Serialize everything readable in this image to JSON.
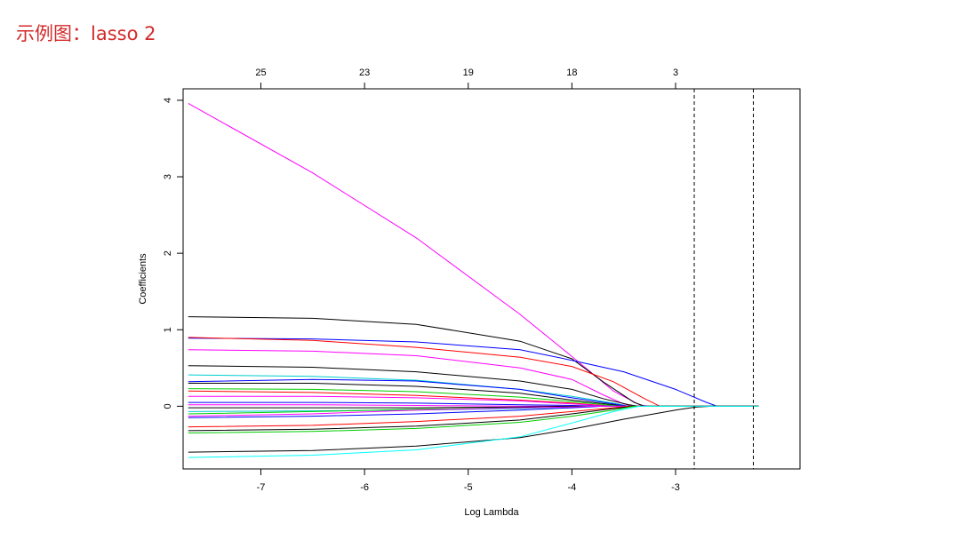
{
  "slide": {
    "title": "示例图：lasso 2"
  },
  "chart_data": {
    "type": "line",
    "title": "",
    "xlabel": "Log Lambda",
    "ylabel": "Coefficients",
    "xlim": [
      -7.75,
      -1.8
    ],
    "ylim": [
      -0.82,
      4.15
    ],
    "x_ticks": [
      -7,
      -6,
      -5,
      -4,
      -3
    ],
    "x_tick_labels": [
      "-7",
      "-6",
      "-5",
      "-4",
      "-3"
    ],
    "y_ticks": [
      0,
      1,
      2,
      3,
      4
    ],
    "y_tick_labels": [
      "0",
      "1",
      "2",
      "3",
      "4"
    ],
    "top_axis": {
      "label": "",
      "ticks": [
        -7,
        -6,
        -5,
        -4,
        -3
      ],
      "tick_labels": [
        "25",
        "23",
        "19",
        "18",
        "3"
      ]
    },
    "vlines": [
      -2.82,
      -2.25
    ],
    "grid": false,
    "legend": "none",
    "series": [
      {
        "color": "#ff00ff",
        "points": [
          [
            -7.7,
            3.96
          ],
          [
            -6.5,
            3.05
          ],
          [
            -5.5,
            2.2
          ],
          [
            -4.5,
            1.2
          ],
          [
            -4.0,
            0.65
          ],
          [
            -3.6,
            0.2
          ],
          [
            -3.35,
            0.02
          ],
          [
            -3.25,
            0
          ]
        ]
      },
      {
        "color": "#000000",
        "points": [
          [
            -7.7,
            1.17
          ],
          [
            -6.5,
            1.15
          ],
          [
            -5.5,
            1.07
          ],
          [
            -4.5,
            0.85
          ],
          [
            -4.0,
            0.62
          ],
          [
            -3.7,
            0.32
          ],
          [
            -3.4,
            0.05
          ],
          [
            -3.3,
            0
          ]
        ]
      },
      {
        "color": "#0000ff",
        "points": [
          [
            -7.7,
            0.89
          ],
          [
            -6.5,
            0.88
          ],
          [
            -5.5,
            0.84
          ],
          [
            -4.5,
            0.74
          ],
          [
            -4.0,
            0.6
          ],
          [
            -3.5,
            0.45
          ],
          [
            -3.0,
            0.22
          ],
          [
            -2.7,
            0.05
          ],
          [
            -2.6,
            0
          ]
        ]
      },
      {
        "color": "#ff0000",
        "points": [
          [
            -7.7,
            0.9
          ],
          [
            -6.5,
            0.86
          ],
          [
            -5.5,
            0.77
          ],
          [
            -4.5,
            0.64
          ],
          [
            -4.0,
            0.52
          ],
          [
            -3.6,
            0.32
          ],
          [
            -3.3,
            0.1
          ],
          [
            -3.15,
            0
          ]
        ]
      },
      {
        "color": "#ff00ff",
        "points": [
          [
            -7.7,
            0.74
          ],
          [
            -6.5,
            0.72
          ],
          [
            -5.5,
            0.66
          ],
          [
            -4.5,
            0.5
          ],
          [
            -4.0,
            0.35
          ],
          [
            -3.7,
            0.15
          ],
          [
            -3.5,
            0.03
          ],
          [
            -3.4,
            0
          ]
        ]
      },
      {
        "color": "#000000",
        "points": [
          [
            -7.7,
            0.53
          ],
          [
            -6.5,
            0.51
          ],
          [
            -5.5,
            0.45
          ],
          [
            -4.5,
            0.33
          ],
          [
            -4.0,
            0.22
          ],
          [
            -3.7,
            0.1
          ],
          [
            -3.45,
            0.02
          ],
          [
            -3.35,
            0
          ]
        ]
      },
      {
        "color": "#00cdcd",
        "points": [
          [
            -7.7,
            0.41
          ],
          [
            -6.5,
            0.39
          ],
          [
            -5.5,
            0.34
          ],
          [
            -4.5,
            0.22
          ],
          [
            -4.0,
            0.13
          ],
          [
            -3.6,
            0.04
          ],
          [
            -3.45,
            0
          ]
        ]
      },
      {
        "color": "#0000ff",
        "points": [
          [
            -7.7,
            0.32
          ],
          [
            -6.5,
            0.35
          ],
          [
            -5.5,
            0.33
          ],
          [
            -4.5,
            0.22
          ],
          [
            -4.0,
            0.11
          ],
          [
            -3.6,
            0.03
          ],
          [
            -3.45,
            0
          ]
        ]
      },
      {
        "color": "#000000",
        "points": [
          [
            -7.7,
            0.3
          ],
          [
            -6.5,
            0.3
          ],
          [
            -5.5,
            0.26
          ],
          [
            -4.5,
            0.17
          ],
          [
            -4.0,
            0.08
          ],
          [
            -3.6,
            0.02
          ],
          [
            -3.5,
            0
          ]
        ]
      },
      {
        "color": "#00cd00",
        "points": [
          [
            -7.7,
            0.23
          ],
          [
            -6.5,
            0.22
          ],
          [
            -5.5,
            0.19
          ],
          [
            -4.5,
            0.12
          ],
          [
            -4.0,
            0.06
          ],
          [
            -3.6,
            0.01
          ],
          [
            -3.5,
            0
          ]
        ]
      },
      {
        "color": "#ff0000",
        "points": [
          [
            -7.7,
            0.2
          ],
          [
            -6.5,
            0.18
          ],
          [
            -5.5,
            0.14
          ],
          [
            -4.5,
            0.08
          ],
          [
            -4.0,
            0.04
          ],
          [
            -3.6,
            0
          ]
        ]
      },
      {
        "color": "#ff00ff",
        "points": [
          [
            -7.7,
            0.13
          ],
          [
            -6.5,
            0.13
          ],
          [
            -5.5,
            0.11
          ],
          [
            -4.5,
            0.07
          ],
          [
            -4.0,
            0.03
          ],
          [
            -3.6,
            0
          ]
        ]
      },
      {
        "color": "#0000ff",
        "points": [
          [
            -7.7,
            0.05
          ],
          [
            -6.5,
            0.05
          ],
          [
            -5.5,
            0.04
          ],
          [
            -4.5,
            0.02
          ],
          [
            -4.0,
            0.01
          ],
          [
            -3.7,
            0
          ]
        ]
      },
      {
        "color": "#ff00ff",
        "points": [
          [
            -7.7,
            0.02
          ],
          [
            -6.5,
            0.02
          ],
          [
            -5.5,
            0.01
          ],
          [
            -4.5,
            0.0
          ],
          [
            -4.0,
            0
          ]
        ]
      },
      {
        "color": "#000000",
        "points": [
          [
            -7.7,
            -0.02
          ],
          [
            -6.5,
            -0.02
          ],
          [
            -5.5,
            -0.02
          ],
          [
            -4.5,
            -0.01
          ],
          [
            -4.0,
            0
          ]
        ]
      },
      {
        "color": "#00cdcd",
        "points": [
          [
            -7.7,
            -0.07
          ],
          [
            -6.5,
            -0.06
          ],
          [
            -5.5,
            -0.05
          ],
          [
            -4.5,
            -0.03
          ],
          [
            -4.0,
            -0.01
          ],
          [
            -3.7,
            0
          ]
        ]
      },
      {
        "color": "#00cd00",
        "points": [
          [
            -7.7,
            -0.1
          ],
          [
            -6.5,
            -0.07
          ],
          [
            -5.5,
            -0.04
          ],
          [
            -4.5,
            -0.02
          ],
          [
            -4.0,
            -0.01
          ],
          [
            -3.8,
            0
          ]
        ]
      },
      {
        "color": "#0000ff",
        "points": [
          [
            -7.7,
            -0.15
          ],
          [
            -6.5,
            -0.13
          ],
          [
            -5.5,
            -0.1
          ],
          [
            -4.5,
            -0.05
          ],
          [
            -4.0,
            -0.02
          ],
          [
            -3.7,
            0
          ]
        ]
      },
      {
        "color": "#ff00ff",
        "points": [
          [
            -7.7,
            -0.13
          ],
          [
            -6.5,
            -0.1
          ],
          [
            -5.5,
            -0.05
          ],
          [
            -4.5,
            -0.02
          ],
          [
            -4.0,
            -0.01
          ],
          [
            -3.8,
            0
          ]
        ]
      },
      {
        "color": "#ff0000",
        "points": [
          [
            -7.7,
            -0.27
          ],
          [
            -6.5,
            -0.25
          ],
          [
            -5.5,
            -0.2
          ],
          [
            -4.5,
            -0.13
          ],
          [
            -4.0,
            -0.07
          ],
          [
            -3.6,
            -0.02
          ],
          [
            -3.45,
            0
          ]
        ]
      },
      {
        "color": "#000000",
        "points": [
          [
            -7.7,
            -0.32
          ],
          [
            -6.5,
            -0.3
          ],
          [
            -5.5,
            -0.26
          ],
          [
            -4.5,
            -0.18
          ],
          [
            -4.0,
            -0.1
          ],
          [
            -3.6,
            -0.03
          ],
          [
            -3.4,
            0
          ]
        ]
      },
      {
        "color": "#00cd00",
        "points": [
          [
            -7.7,
            -0.35
          ],
          [
            -6.5,
            -0.33
          ],
          [
            -5.5,
            -0.29
          ],
          [
            -4.5,
            -0.21
          ],
          [
            -4.0,
            -0.13
          ],
          [
            -3.6,
            -0.05
          ],
          [
            -3.4,
            0
          ]
        ]
      },
      {
        "color": "#000000",
        "points": [
          [
            -7.7,
            -0.6
          ],
          [
            -6.5,
            -0.58
          ],
          [
            -5.5,
            -0.52
          ],
          [
            -4.5,
            -0.41
          ],
          [
            -4.0,
            -0.3
          ],
          [
            -3.5,
            -0.17
          ],
          [
            -3.0,
            -0.05
          ],
          [
            -2.8,
            -0.01
          ],
          [
            -2.65,
            0
          ]
        ]
      },
      {
        "color": "#00ffff",
        "points": [
          [
            -7.7,
            -0.67
          ],
          [
            -6.5,
            -0.64
          ],
          [
            -5.5,
            -0.57
          ],
          [
            -4.5,
            -0.4
          ],
          [
            -4.0,
            -0.22
          ],
          [
            -3.6,
            -0.07
          ],
          [
            -3.35,
            0
          ]
        ]
      }
    ]
  }
}
